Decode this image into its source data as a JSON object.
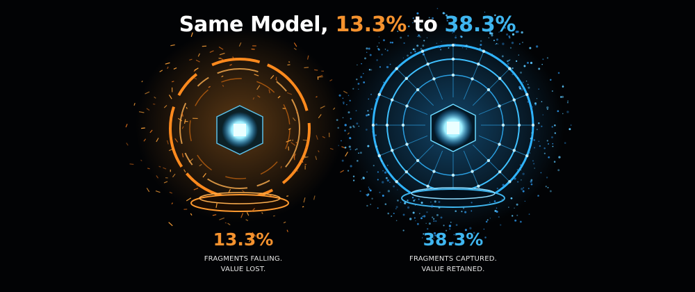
{
  "title": {
    "prefix": "Same Model, ",
    "left_value": "13.3%",
    "middle": " to ",
    "right_value": "38.3%"
  },
  "panels": [
    {
      "value": "13.3%",
      "caption": [
        "FRAGMENTS FALLING.",
        "VALUE LOST."
      ]
    },
    {
      "value": "38.3%",
      "caption": [
        "FRAGMENTS CAPTURED.",
        "VALUE RETAINED."
      ]
    }
  ]
}
